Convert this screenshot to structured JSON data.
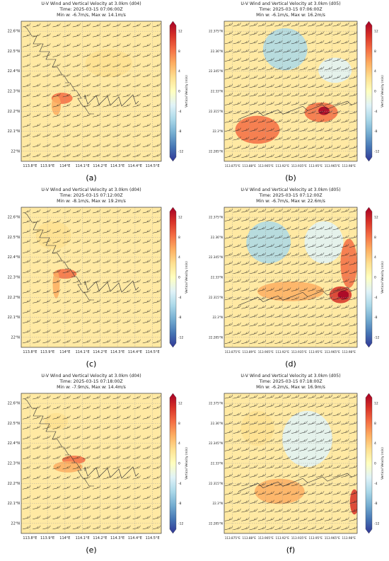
{
  "figure": {
    "panels": [
      {
        "tag": "(a)",
        "title": "U-V Wind and Vertical Velocity at 3.0km (d04)",
        "time": "Time: 2025-03-15 07:06:00Z",
        "minmax": "Min w: -6.7m/s, Max w: 14.1m/s",
        "xticks": [
          "113.8°E",
          "113.9°E",
          "114°E",
          "114.1°E",
          "114.2°E",
          "114.3°E",
          "114.4°E",
          "114.5°E"
        ],
        "yticks": [
          "22.6°N",
          "22.5°N",
          "22.4°N",
          "22.3°N",
          "22.2°N",
          "22.1°N",
          "22°N"
        ]
      },
      {
        "tag": "(b)",
        "title": "U-V Wind and Vertical Velocity at 3.0km (d05)",
        "time": "Time: 2025-03-15 07:06:00Z",
        "minmax": "Min w: -6.1m/s, Max w: 16.2m/s",
        "xticks": [
          "113.875°E",
          "113.88°E",
          "113.905°E",
          "113.92°E",
          "113.935°E",
          "113.95°E",
          "113.965°E",
          "113.98°E"
        ],
        "yticks": [
          "22.375°N",
          "22.36°N",
          "22.345°N",
          "22.33°N",
          "22.315°N",
          "22.3°N",
          "22.285°N"
        ]
      },
      {
        "tag": "(c)",
        "title": "U-V Wind and Vertical Velocity at 3.0km (d04)",
        "time": "Time: 2025-03-15 07:12:00Z",
        "minmax": "Min w: -8.1m/s, Max w: 19.2m/s",
        "xticks": [
          "113.8°E",
          "113.9°E",
          "114°E",
          "114.1°E",
          "114.2°E",
          "114.3°E",
          "114.4°E",
          "114.5°E"
        ],
        "yticks": [
          "22.6°N",
          "22.5°N",
          "22.4°N",
          "22.3°N",
          "22.2°N",
          "22.1°N",
          "22°N"
        ]
      },
      {
        "tag": "(d)",
        "title": "U-V Wind and Vertical Velocity at 3.0km (d05)",
        "time": "Time: 2025-03-15 07:12:00Z",
        "minmax": "Min w: -6.7m/s, Max w: 22.6m/s",
        "xticks": [
          "113.875°E",
          "113.89°E",
          "113.905°E",
          "113.92°E",
          "113.935°E",
          "113.95°E",
          "113.965°E",
          "113.98°E"
        ],
        "yticks": [
          "22.375°N",
          "22.36°N",
          "22.345°N",
          "22.33°N",
          "22.315°N",
          "22.3°N",
          "22.285°N"
        ]
      },
      {
        "tag": "(e)",
        "title": "U-V Wind and Vertical Velocity at 3.0km (d04)",
        "time": "Time: 2025-03-15 07:18:00Z",
        "minmax": "Min w: -7.9m/s, Max w: 14.4m/s",
        "xticks": [
          "113.8°E",
          "113.9°E",
          "114°E",
          "114.1°E",
          "114.2°E",
          "114.3°E",
          "114.4°E",
          "114.5°E"
        ],
        "yticks": [
          "22.6°N",
          "22.5°N",
          "22.4°N",
          "22.3°N",
          "22.2°N",
          "22.1°N",
          "22°N"
        ]
      },
      {
        "tag": "(f)",
        "title": "U-V Wind and Vertical Velocity at 3.0km (d05)",
        "time": "Time: 2025-03-15 07:18:00Z",
        "minmax": "Min w: -6.2m/s, Max w: 16.9m/s",
        "xticks": [
          "113.875°E",
          "113.88°E",
          "113.905°E",
          "113.92°E",
          "113.935°E",
          "113.95°E",
          "113.965°E",
          "113.98°E"
        ],
        "yticks": [
          "22.375°N",
          "22.36°N",
          "22.345°N",
          "22.33°N",
          "22.315°N",
          "22.3°N",
          "22.285°N"
        ]
      }
    ]
  },
  "colorbar": {
    "label": "Vertical Velocity (m/s)",
    "ticks": [
      "12",
      "8",
      "4",
      "0",
      "-4",
      "-8",
      "-12"
    ],
    "colors": [
      "#313695",
      "#4575b4",
      "#74add1",
      "#abd9e9",
      "#e0f3f8",
      "#ffffbf",
      "#fee090",
      "#fdae61",
      "#f46d43",
      "#d73027",
      "#a50026"
    ]
  },
  "chart_data": [
    {
      "type": "heatmap",
      "title": "U-V Wind and Vertical Velocity at 3.0km (d04)",
      "subtitle": "Time: 2025-03-15 07:06:00Z",
      "annotation": "Min w: -6.7m/s, Max w: 14.1m/s",
      "clim": [
        -14,
        14
      ],
      "colorbar_label": "Vertical Velocity (m/s)",
      "xlim": [
        113.75,
        114.5
      ],
      "ylim": [
        21.95,
        22.7
      ],
      "overlay": "wind barbs",
      "grid": true
    },
    {
      "type": "heatmap",
      "title": "U-V Wind and Vertical Velocity at 3.0km (d05)",
      "subtitle": "Time: 2025-03-15 07:06:00Z",
      "annotation": "Min w: -6.1m/s, Max w: 16.2m/s",
      "clim": [
        -14,
        14
      ],
      "colorbar_label": "Vertical Velocity (m/s)",
      "overlay": "wind barbs",
      "grid": true
    },
    {
      "type": "heatmap",
      "title": "U-V Wind and Vertical Velocity at 3.0km (d04)",
      "subtitle": "Time: 2025-03-15 07:12:00Z",
      "annotation": "Min w: -8.1m/s, Max w: 19.2m/s",
      "clim": [
        -14,
        14
      ],
      "colorbar_label": "Vertical Velocity (m/s)",
      "xlim": [
        113.75,
        114.5
      ],
      "ylim": [
        21.95,
        22.7
      ],
      "overlay": "wind barbs",
      "grid": true
    },
    {
      "type": "heatmap",
      "title": "U-V Wind and Vertical Velocity at 3.0km (d05)",
      "subtitle": "Time: 2025-03-15 07:12:00Z",
      "annotation": "Min w: -6.7m/s, Max w: 22.6m/s",
      "clim": [
        -14,
        14
      ],
      "colorbar_label": "Vertical Velocity (m/s)",
      "overlay": "wind barbs",
      "grid": true
    },
    {
      "type": "heatmap",
      "title": "U-V Wind and Vertical Velocity at 3.0km (d04)",
      "subtitle": "Time: 2025-03-15 07:18:00Z",
      "annotation": "Min w: -7.9m/s, Max w: 14.4m/s",
      "clim": [
        -14,
        14
      ],
      "colorbar_label": "Vertical Velocity (m/s)",
      "xlim": [
        113.75,
        114.5
      ],
      "ylim": [
        21.95,
        22.7
      ],
      "overlay": "wind barbs",
      "grid": true
    },
    {
      "type": "heatmap",
      "title": "U-V Wind and Vertical Velocity at 3.0km (d05)",
      "subtitle": "Time: 2025-03-15 07:18:00Z",
      "annotation": "Min w: -6.2m/s, Max w: 16.9m/s",
      "clim": [
        -14,
        14
      ],
      "colorbar_label": "Vertical Velocity (m/s)",
      "overlay": "wind barbs",
      "grid": true
    }
  ]
}
